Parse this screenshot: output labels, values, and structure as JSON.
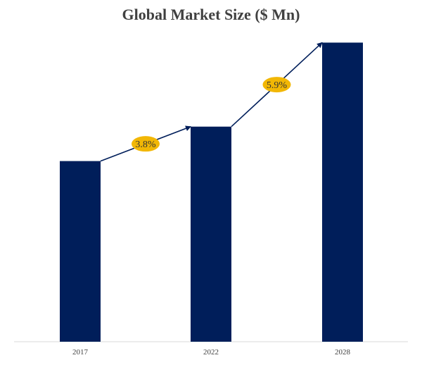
{
  "chart_data": {
    "type": "bar",
    "title": "Global Market Size ($ Mn)",
    "categories": [
      "2017",
      "2022",
      "2028"
    ],
    "values": [
      215,
      256,
      356
    ],
    "ylim": [
      0,
      400
    ],
    "grid": false,
    "legend": "none",
    "bar_color": "#001e5a",
    "annotations": [
      {
        "label": "3.8%",
        "from": "2017",
        "to": "2022"
      },
      {
        "label": "5.9%",
        "from": "2022",
        "to": "2028"
      }
    ],
    "annotation_color": "#f2b705"
  }
}
